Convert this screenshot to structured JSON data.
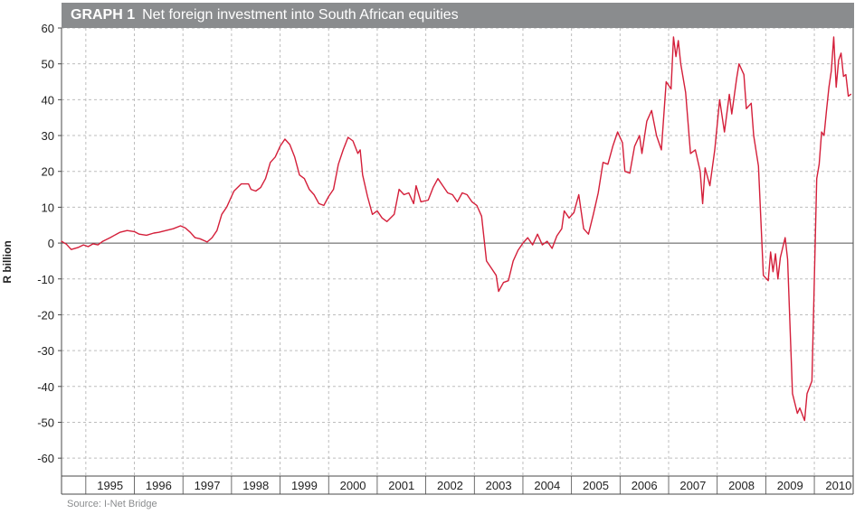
{
  "title_number": "GRAPH 1",
  "title_text": "Net foreign investment into South African equities",
  "source": "Source: I-Net Bridge",
  "colors": {
    "line": "#d41f3a",
    "header": "#8a8c8e",
    "grid": "#bdbdbd",
    "axis": "#4a4a4a"
  },
  "chart_data": {
    "type": "line",
    "title": "Net foreign investment into South African equities",
    "ylabel": "R billion",
    "xlabel": "",
    "ylim": [
      -65,
      60
    ],
    "xlim": [
      1994.0,
      2010.3
    ],
    "yticks": [
      60,
      50,
      40,
      30,
      20,
      10,
      0,
      -10,
      -20,
      -30,
      -40,
      -50,
      -60
    ],
    "xticks": [
      "1995",
      "1996",
      "1997",
      "1998",
      "1999",
      "2000",
      "2001",
      "2002",
      "2003",
      "2004",
      "2005",
      "2006",
      "2007",
      "2008",
      "2009",
      "2010"
    ],
    "grid": true,
    "legend": "none",
    "series": [
      {
        "values": [
          [
            1994.0,
            0.5
          ],
          [
            1994.1,
            -0.3
          ],
          [
            1994.2,
            -1.8
          ],
          [
            1994.35,
            -1.2
          ],
          [
            1994.45,
            -0.5
          ],
          [
            1994.55,
            -1.0
          ],
          [
            1994.65,
            -0.2
          ],
          [
            1994.75,
            -0.5
          ],
          [
            1994.85,
            0.5
          ],
          [
            1995.0,
            1.5
          ],
          [
            1995.2,
            3.0
          ],
          [
            1995.35,
            3.5
          ],
          [
            1995.5,
            3.2
          ],
          [
            1995.6,
            2.5
          ],
          [
            1995.75,
            2.2
          ],
          [
            1995.9,
            2.8
          ],
          [
            1996.0,
            3.0
          ],
          [
            1996.15,
            3.5
          ],
          [
            1996.3,
            4.0
          ],
          [
            1996.45,
            4.8
          ],
          [
            1996.55,
            4.2
          ],
          [
            1996.65,
            3.0
          ],
          [
            1996.75,
            1.5
          ],
          [
            1996.85,
            1.2
          ],
          [
            1997.0,
            0.3
          ],
          [
            1997.1,
            1.5
          ],
          [
            1997.2,
            3.5
          ],
          [
            1997.3,
            8.0
          ],
          [
            1997.4,
            10.0
          ],
          [
            1997.55,
            14.5
          ],
          [
            1997.7,
            16.5
          ],
          [
            1997.85,
            16.5
          ],
          [
            1997.9,
            15.0
          ],
          [
            1998.0,
            14.5
          ],
          [
            1998.1,
            15.5
          ],
          [
            1998.2,
            18.0
          ],
          [
            1998.3,
            22.5
          ],
          [
            1998.4,
            24.0
          ],
          [
            1998.5,
            27.0
          ],
          [
            1998.6,
            29.0
          ],
          [
            1998.7,
            27.5
          ],
          [
            1998.8,
            24.0
          ],
          [
            1998.9,
            19.0
          ],
          [
            1999.0,
            18.0
          ],
          [
            1999.1,
            15.0
          ],
          [
            1999.2,
            13.5
          ],
          [
            1999.3,
            11.0
          ],
          [
            1999.4,
            10.5
          ],
          [
            1999.5,
            13.0
          ],
          [
            1999.6,
            15.0
          ],
          [
            1999.7,
            22.0
          ],
          [
            1999.8,
            26.0
          ],
          [
            1999.9,
            29.5
          ],
          [
            2000.0,
            28.5
          ],
          [
            2000.1,
            25.0
          ],
          [
            2000.15,
            26.0
          ],
          [
            2000.2,
            19.0
          ],
          [
            2000.3,
            13.0
          ],
          [
            2000.4,
            8.0
          ],
          [
            2000.5,
            9.0
          ],
          [
            2000.6,
            7.0
          ],
          [
            2000.7,
            6.0
          ],
          [
            2000.85,
            8.0
          ],
          [
            2000.95,
            15.0
          ],
          [
            2001.05,
            13.5
          ],
          [
            2001.15,
            14.0
          ],
          [
            2001.25,
            11.0
          ],
          [
            2001.3,
            16.0
          ],
          [
            2001.4,
            11.5
          ],
          [
            2001.55,
            12.0
          ],
          [
            2001.65,
            15.5
          ],
          [
            2001.75,
            18.0
          ],
          [
            2001.85,
            16.0
          ],
          [
            2001.95,
            14.0
          ],
          [
            2002.05,
            13.5
          ],
          [
            2002.15,
            11.5
          ],
          [
            2002.25,
            14.0
          ],
          [
            2002.35,
            13.5
          ],
          [
            2002.45,
            11.5
          ],
          [
            2002.55,
            10.5
          ],
          [
            2002.65,
            7.5
          ],
          [
            2002.75,
            -5.0
          ],
          [
            2002.85,
            -7.0
          ],
          [
            2002.95,
            -9.0
          ],
          [
            2003.0,
            -13.5
          ],
          [
            2003.1,
            -11.0
          ],
          [
            2003.2,
            -10.5
          ],
          [
            2003.3,
            -5.0
          ],
          [
            2003.4,
            -2.0
          ],
          [
            2003.5,
            0.0
          ],
          [
            2003.6,
            1.5
          ],
          [
            2003.7,
            -0.5
          ],
          [
            2003.8,
            2.5
          ],
          [
            2003.9,
            -0.5
          ],
          [
            2004.0,
            0.5
          ],
          [
            2004.1,
            -1.5
          ],
          [
            2004.2,
            2.0
          ],
          [
            2004.3,
            4.0
          ],
          [
            2004.35,
            9.0
          ],
          [
            2004.45,
            7.0
          ],
          [
            2004.55,
            8.5
          ],
          [
            2004.65,
            13.5
          ],
          [
            2004.75,
            4.0
          ],
          [
            2004.85,
            2.5
          ],
          [
            2004.95,
            8.0
          ],
          [
            2005.05,
            14.0
          ],
          [
            2005.15,
            22.5
          ],
          [
            2005.25,
            22.0
          ],
          [
            2005.35,
            27.0
          ],
          [
            2005.45,
            31.0
          ],
          [
            2005.55,
            28.0
          ],
          [
            2005.6,
            20.0
          ],
          [
            2005.7,
            19.5
          ],
          [
            2005.8,
            27.0
          ],
          [
            2005.9,
            30.0
          ],
          [
            2005.95,
            25.0
          ],
          [
            2006.05,
            34.0
          ],
          [
            2006.15,
            37.0
          ],
          [
            2006.25,
            30.0
          ],
          [
            2006.35,
            26.0
          ],
          [
            2006.45,
            45.0
          ],
          [
            2006.55,
            43.0
          ],
          [
            2006.6,
            57.5
          ],
          [
            2006.65,
            52.0
          ],
          [
            2006.7,
            56.5
          ],
          [
            2006.75,
            50.0
          ],
          [
            2006.85,
            42.0
          ],
          [
            2006.95,
            25.0
          ],
          [
            2007.05,
            26.0
          ],
          [
            2007.15,
            20.0
          ],
          [
            2007.2,
            11.0
          ],
          [
            2007.25,
            21.0
          ],
          [
            2007.35,
            16.0
          ],
          [
            2007.45,
            26.0
          ],
          [
            2007.55,
            40.0
          ],
          [
            2007.65,
            31.0
          ],
          [
            2007.75,
            41.5
          ],
          [
            2007.8,
            36.0
          ],
          [
            2007.9,
            46.0
          ],
          [
            2007.95,
            50.0
          ],
          [
            2008.05,
            47.0
          ],
          [
            2008.1,
            37.5
          ],
          [
            2008.2,
            39.0
          ],
          [
            2008.25,
            30.0
          ],
          [
            2008.35,
            21.5
          ],
          [
            2008.45,
            -9.0
          ],
          [
            2008.55,
            -10.5
          ],
          [
            2008.6,
            -2.5
          ],
          [
            2008.65,
            -8.0
          ],
          [
            2008.7,
            -3.0
          ],
          [
            2008.75,
            -10.0
          ],
          [
            2008.8,
            -4.0
          ],
          [
            2008.9,
            1.5
          ],
          [
            2008.95,
            -4.5
          ],
          [
            2009.05,
            -42.0
          ],
          [
            2009.15,
            -47.5
          ],
          [
            2009.2,
            -46.0
          ],
          [
            2009.3,
            -49.5
          ],
          [
            2009.35,
            -42.0
          ],
          [
            2009.45,
            -38.5
          ],
          [
            2009.55,
            18.0
          ],
          [
            2009.6,
            22.0
          ],
          [
            2009.65,
            31.0
          ],
          [
            2009.7,
            30.0
          ],
          [
            2009.75,
            37.0
          ],
          [
            2009.8,
            43.5
          ],
          [
            2009.85,
            48.0
          ],
          [
            2009.9,
            57.5
          ],
          [
            2009.95,
            43.5
          ],
          [
            2010.0,
            51.0
          ],
          [
            2010.05,
            53.0
          ],
          [
            2010.1,
            46.5
          ],
          [
            2010.15,
            47.0
          ],
          [
            2010.2,
            41.0
          ],
          [
            2010.25,
            41.5
          ]
        ]
      }
    ]
  }
}
